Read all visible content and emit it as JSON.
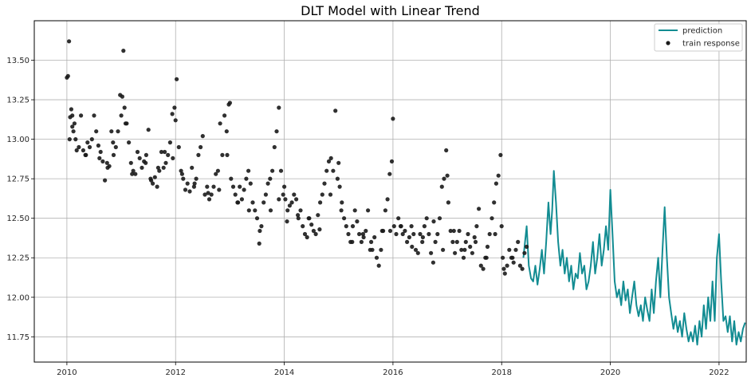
{
  "chart_data": {
    "type": "line",
    "title": "DLT Model with Linear Trend",
    "xlabel": "",
    "ylabel": "",
    "xlim": [
      2009.4,
      2022.5
    ],
    "ylim": [
      11.59,
      13.75
    ],
    "x_ticks": [
      2010,
      2012,
      2014,
      2016,
      2018,
      2020,
      2022
    ],
    "x_tick_labels": [
      "2010",
      "2012",
      "2014",
      "2016",
      "2018",
      "2020",
      "2022"
    ],
    "y_ticks": [
      11.75,
      12.0,
      12.25,
      12.5,
      12.75,
      13.0,
      13.25,
      13.5
    ],
    "y_tick_labels": [
      "11.75",
      "12.00",
      "12.25",
      "12.50",
      "12.75",
      "13.00",
      "13.25",
      "13.50"
    ],
    "grid": true,
    "legend_position": "top-right",
    "colors": {
      "prediction": "#128c92",
      "train_response": "#1a1a1a",
      "grid": "#b0b0b0"
    },
    "series": [
      {
        "name": "prediction",
        "kind": "line",
        "x": [
          2018.4,
          2018.46,
          2018.5,
          2018.54,
          2018.58,
          2018.62,
          2018.66,
          2018.7,
          2018.74,
          2018.78,
          2018.82,
          2018.86,
          2018.9,
          2018.93,
          2018.96,
          2019.0,
          2019.04,
          2019.08,
          2019.12,
          2019.16,
          2019.2,
          2019.24,
          2019.28,
          2019.32,
          2019.36,
          2019.4,
          2019.44,
          2019.48,
          2019.52,
          2019.56,
          2019.6,
          2019.64,
          2019.68,
          2019.72,
          2019.76,
          2019.8,
          2019.84,
          2019.88,
          2019.92,
          2019.96,
          2020.0,
          2020.04,
          2020.08,
          2020.12,
          2020.16,
          2020.2,
          2020.24,
          2020.28,
          2020.32,
          2020.36,
          2020.4,
          2020.44,
          2020.48,
          2020.52,
          2020.56,
          2020.6,
          2020.64,
          2020.68,
          2020.72,
          2020.76,
          2020.8,
          2020.84,
          2020.88,
          2020.92,
          2020.96,
          2021.0,
          2021.04,
          2021.08,
          2021.12,
          2021.16,
          2021.2,
          2021.24,
          2021.28,
          2021.32,
          2021.36,
          2021.4,
          2021.44,
          2021.48,
          2021.52,
          2021.56,
          2021.6,
          2021.64,
          2021.68,
          2021.72,
          2021.76,
          2021.8,
          2021.84,
          2021.88,
          2021.92,
          2021.96,
          2022.0,
          2022.04,
          2022.08,
          2022.12,
          2022.16,
          2022.2,
          2022.24,
          2022.28,
          2022.32,
          2022.36,
          2022.4,
          2022.44,
          2022.48
        ],
        "y": [
          12.25,
          12.45,
          12.2,
          12.12,
          12.1,
          12.2,
          12.08,
          12.18,
          12.3,
          12.15,
          12.35,
          12.6,
          12.4,
          12.55,
          12.8,
          12.6,
          12.35,
          12.2,
          12.3,
          12.15,
          12.25,
          12.1,
          12.2,
          12.05,
          12.15,
          12.12,
          12.28,
          12.15,
          12.2,
          12.05,
          12.1,
          12.2,
          12.35,
          12.15,
          12.25,
          12.4,
          12.2,
          12.3,
          12.45,
          12.3,
          12.68,
          12.4,
          12.1,
          12.0,
          12.05,
          11.95,
          12.1,
          11.98,
          12.05,
          11.9,
          12.0,
          12.1,
          11.95,
          11.88,
          11.95,
          11.85,
          12.0,
          11.92,
          11.85,
          12.05,
          11.9,
          12.1,
          12.25,
          12.0,
          12.3,
          12.57,
          12.25,
          12.0,
          11.9,
          11.8,
          11.88,
          11.78,
          11.85,
          11.75,
          11.9,
          11.8,
          11.72,
          11.78,
          11.72,
          11.82,
          11.7,
          11.85,
          11.75,
          11.95,
          11.8,
          12.0,
          11.85,
          12.1,
          11.85,
          12.25,
          12.4,
          12.1,
          11.85,
          11.88,
          11.78,
          11.88,
          11.72,
          11.85,
          11.7,
          11.78,
          11.72,
          11.8,
          11.84
        ]
      },
      {
        "name": "train response",
        "kind": "scatter",
        "x": [
          2010.0,
          2010.02,
          2010.04,
          2010.06,
          2010.08,
          2010.1,
          2010.12,
          2010.14,
          2010.16,
          2010.18,
          2010.22,
          2010.26,
          2010.3,
          2010.34,
          2010.38,
          2010.42,
          2010.46,
          2010.5,
          2010.54,
          2010.58,
          2010.62,
          2010.66,
          2010.7,
          2010.74,
          2010.78,
          2010.82,
          2010.86,
          2010.9,
          2010.94,
          2010.98,
          2011.0,
          2011.02,
          2011.04,
          2011.06,
          2011.1,
          2011.14,
          2011.18,
          2011.22,
          2011.26,
          2011.3,
          2011.34,
          2011.38,
          2011.42,
          2011.46,
          2011.5,
          2011.54,
          2011.58,
          2011.62,
          2011.66,
          2011.7,
          2011.74,
          2011.78,
          2011.82,
          2011.86,
          2011.9,
          2011.94,
          2011.98,
          2012.0,
          2012.02,
          2012.06,
          2012.1,
          2012.14,
          2012.18,
          2012.22,
          2012.26,
          2012.3,
          2012.34,
          2012.38,
          2012.42,
          2012.46,
          2012.5,
          2012.54,
          2012.58,
          2012.62,
          2012.66,
          2012.7,
          2012.74,
          2012.78,
          2012.82,
          2012.86,
          2012.9,
          2012.94,
          2012.98,
          2013.0,
          2013.02,
          2013.06,
          2013.1,
          2013.14,
          2013.18,
          2013.22,
          2013.26,
          2013.3,
          2013.34,
          2013.38,
          2013.42,
          2013.46,
          2013.5,
          2013.54,
          2013.58,
          2013.62,
          2013.66,
          2013.7,
          2013.74,
          2013.78,
          2013.82,
          2013.86,
          2013.9,
          2013.94,
          2013.98,
          2014.0,
          2014.02,
          2014.06,
          2014.1,
          2014.14,
          2014.18,
          2014.22,
          2014.26,
          2014.3,
          2014.34,
          2014.38,
          2014.42,
          2014.46,
          2014.5,
          2014.54,
          2014.58,
          2014.62,
          2014.66,
          2014.7,
          2014.74,
          2014.78,
          2014.82,
          2014.86,
          2014.9,
          2014.94,
          2014.98,
          2015.0,
          2015.02,
          2015.06,
          2015.1,
          2015.14,
          2015.18,
          2015.22,
          2015.26,
          2015.3,
          2015.34,
          2015.38,
          2015.42,
          2015.46,
          2015.5,
          2015.54,
          2015.58,
          2015.62,
          2015.66,
          2015.7,
          2015.74,
          2015.78,
          2015.82,
          2015.86,
          2015.9,
          2015.94,
          2015.98,
          2016.0,
          2016.02,
          2016.06,
          2016.1,
          2016.14,
          2016.18,
          2016.22,
          2016.26,
          2016.3,
          2016.34,
          2016.38,
          2016.42,
          2016.46,
          2016.5,
          2016.54,
          2016.58,
          2016.62,
          2016.66,
          2016.7,
          2016.74,
          2016.78,
          2016.82,
          2016.86,
          2016.9,
          2016.94,
          2016.98,
          2017.0,
          2017.02,
          2017.06,
          2017.1,
          2017.14,
          2017.18,
          2017.22,
          2017.26,
          2017.3,
          2017.34,
          2017.38,
          2017.42,
          2017.46,
          2017.5,
          2017.54,
          2017.58,
          2017.62,
          2017.66,
          2017.7,
          2017.74,
          2017.78,
          2017.82,
          2017.86,
          2017.9,
          2017.94,
          2017.98,
          2018.0,
          2018.02,
          2018.06,
          2018.1,
          2018.14,
          2018.18,
          2018.22,
          2018.26,
          2018.3,
          2018.34,
          2018.38,
          2018.42,
          2018.46,
          2010.05,
          2010.1,
          2010.35,
          2010.6,
          2010.75,
          2010.85,
          2011.08,
          2011.2,
          2011.45,
          2011.55,
          2011.68,
          2011.8,
          2011.95,
          2012.12,
          2012.35,
          2012.6,
          2012.8,
          2012.95,
          2013.15,
          2013.35,
          2013.55,
          2013.75,
          2013.9,
          2014.05,
          2014.25,
          2014.45,
          2014.65,
          2014.85,
          2015.05,
          2015.25,
          2015.45,
          2015.6,
          2015.8,
          2015.95,
          2016.15,
          2016.35,
          2016.55,
          2016.75,
          2016.92,
          2017.12,
          2017.32,
          2017.52,
          2017.72,
          2017.88,
          2018.04,
          2018.2
        ],
        "y": [
          13.39,
          13.4,
          13.62,
          13.14,
          13.19,
          13.15,
          13.05,
          13.1,
          13.0,
          12.93,
          12.95,
          13.15,
          12.93,
          12.9,
          12.98,
          12.95,
          13.0,
          13.15,
          13.05,
          12.96,
          12.92,
          12.86,
          12.74,
          12.85,
          12.83,
          13.05,
          12.9,
          12.95,
          13.05,
          13.28,
          13.15,
          13.27,
          13.56,
          13.2,
          13.1,
          12.98,
          12.85,
          12.8,
          12.78,
          12.92,
          12.88,
          12.82,
          12.86,
          12.9,
          13.06,
          12.75,
          12.72,
          12.76,
          12.7,
          12.8,
          12.92,
          12.82,
          12.85,
          12.9,
          12.98,
          13.16,
          13.2,
          13.12,
          13.38,
          12.95,
          12.8,
          12.75,
          12.68,
          12.72,
          12.67,
          12.82,
          12.7,
          12.75,
          12.9,
          12.95,
          13.02,
          12.65,
          12.7,
          12.62,
          12.65,
          12.7,
          12.78,
          12.8,
          13.1,
          12.9,
          13.15,
          13.05,
          13.22,
          13.23,
          12.75,
          12.7,
          12.65,
          12.6,
          12.7,
          12.62,
          12.68,
          12.75,
          12.8,
          12.72,
          12.6,
          12.55,
          12.5,
          12.34,
          12.45,
          12.6,
          12.65,
          12.72,
          12.75,
          12.8,
          12.95,
          13.05,
          13.2,
          12.8,
          12.65,
          12.7,
          12.62,
          12.55,
          12.58,
          12.6,
          12.65,
          12.62,
          12.5,
          12.55,
          12.45,
          12.4,
          12.38,
          12.5,
          12.46,
          12.42,
          12.4,
          12.52,
          12.6,
          12.65,
          12.72,
          12.8,
          12.86,
          12.88,
          12.8,
          13.18,
          12.75,
          12.85,
          12.7,
          12.6,
          12.5,
          12.45,
          12.4,
          12.35,
          12.45,
          12.55,
          12.48,
          12.4,
          12.35,
          12.38,
          12.42,
          12.55,
          12.3,
          12.3,
          12.38,
          12.25,
          12.2,
          12.3,
          12.42,
          12.55,
          12.62,
          12.78,
          12.86,
          13.13,
          12.45,
          12.4,
          12.5,
          12.45,
          12.4,
          12.42,
          12.35,
          12.38,
          12.45,
          12.4,
          12.3,
          12.28,
          12.4,
          12.35,
          12.45,
          12.5,
          12.4,
          12.28,
          12.22,
          12.35,
          12.4,
          12.5,
          12.7,
          12.75,
          12.93,
          12.77,
          12.6,
          12.42,
          12.35,
          12.28,
          12.35,
          12.42,
          12.3,
          12.25,
          12.35,
          12.4,
          12.32,
          12.28,
          12.38,
          12.45,
          12.56,
          12.2,
          12.18,
          12.25,
          12.32,
          12.4,
          12.5,
          12.6,
          12.72,
          12.77,
          12.9,
          12.45,
          12.25,
          12.15,
          12.2,
          12.3,
          12.25,
          12.22,
          12.3,
          12.35,
          12.2,
          12.18,
          12.28,
          12.32,
          13.0,
          13.08,
          12.9,
          12.88,
          12.82,
          12.98,
          13.1,
          12.78,
          12.85,
          12.74,
          12.82,
          12.92,
          12.88,
          12.78,
          12.72,
          12.66,
          12.68,
          12.9,
          12.6,
          12.55,
          12.42,
          12.55,
          12.62,
          12.48,
          12.52,
          12.5,
          12.43,
          12.65,
          12.55,
          12.35,
          12.4,
          12.35,
          12.42,
          12.42,
          12.45,
          12.32,
          12.38,
          12.48,
          12.3,
          12.42,
          12.3,
          12.35,
          12.25,
          12.4,
          12.18,
          12.25
        ]
      }
    ]
  }
}
